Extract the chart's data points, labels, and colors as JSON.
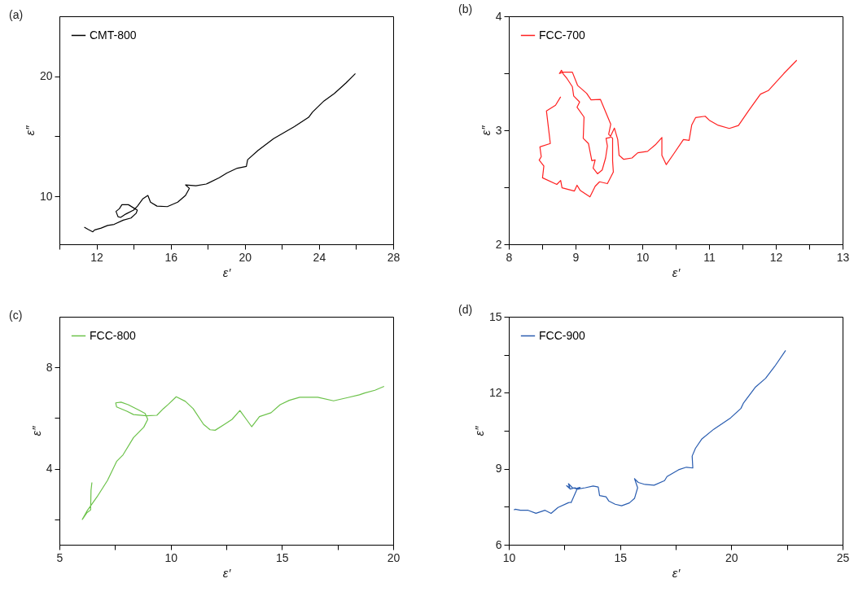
{
  "chart_data": [
    {
      "type": "line",
      "annotations": [
        "(a)"
      ],
      "xlabel": "ε′",
      "ylabel": "ε″",
      "legend": "top left",
      "marker": "none",
      "line_style": "solid",
      "grid": false,
      "xlim": [
        10,
        28
      ],
      "ylim": [
        6,
        25
      ],
      "xticks": [
        {
          "value": 10,
          "label": null
        },
        12,
        {
          "value": 14,
          "label": null
        },
        16,
        {
          "value": 18,
          "label": null
        },
        20,
        {
          "value": 22,
          "label": null
        },
        24,
        {
          "value": 26,
          "label": null
        },
        28
      ],
      "yticks": [
        10,
        {
          "value": 15,
          "label": null
        },
        20
      ],
      "series": [
        {
          "name": "CMT-800",
          "color": "#000000",
          "x": [
            11.34,
            11.55,
            11.8,
            11.9,
            12.25,
            12.6,
            12.95,
            13.44,
            13.86,
            14.14,
            14.2,
            14.07,
            13.72,
            13.37,
            13.23,
            13.05,
            13.16,
            13.3,
            13.58,
            14.0,
            14.21,
            14.49,
            14.77,
            14.91,
            15.26,
            15.82,
            16.38,
            16.8,
            17.01,
            16.8,
            17.36,
            17.92,
            18.62,
            19.03,
            19.59,
            20.08,
            20.15,
            20.71,
            21.55,
            22.67,
            23.44,
            23.65,
            24.27,
            24.83,
            25.46,
            25.96
          ],
          "values": [
            7.42,
            7.24,
            7.04,
            7.2,
            7.35,
            7.57,
            7.66,
            8.01,
            8.19,
            8.59,
            8.85,
            8.96,
            9.3,
            9.3,
            8.96,
            8.74,
            8.3,
            8.24,
            8.52,
            8.85,
            9.18,
            9.78,
            10.07,
            9.51,
            9.18,
            9.14,
            9.51,
            10.07,
            10.66,
            10.95,
            10.88,
            11.02,
            11.55,
            11.94,
            12.34,
            12.49,
            13.05,
            13.82,
            14.81,
            15.81,
            16.58,
            17.02,
            17.95,
            18.57,
            19.45,
            20.22
          ]
        }
      ]
    },
    {
      "type": "line",
      "annotations": [
        "(b)"
      ],
      "xlabel": "ε′",
      "ylabel": "ε″",
      "legend": "top left",
      "marker": "none",
      "line_style": "solid",
      "grid": false,
      "xlim": [
        8,
        13
      ],
      "ylim": [
        2,
        4
      ],
      "xticks": [
        8,
        {
          "value": 8.5,
          "label": null
        },
        9,
        {
          "value": 9.5,
          "label": null
        },
        10,
        {
          "value": 10.5,
          "label": null
        },
        11,
        {
          "value": 11.5,
          "label": null
        },
        12,
        {
          "value": 12.5,
          "label": null
        },
        13
      ],
      "yticks": [
        2,
        {
          "value": 2.5,
          "label": null
        },
        3,
        {
          "value": 3.5,
          "label": null
        },
        4
      ],
      "series": [
        {
          "name": "FCC-700",
          "color": "#ff2020",
          "x": [
            8.777,
            8.7,
            8.564,
            8.622,
            8.466,
            8.486,
            8.455,
            8.525,
            8.505,
            8.719,
            8.777,
            8.797,
            8.983,
            9.022,
            9.068,
            9.216,
            9.294,
            9.36,
            9.477,
            9.566,
            9.555,
            9.555,
            9.496,
            9.527,
            9.372,
            9.232,
            9.166,
            9.03,
            8.952,
            8.816,
            8.758,
            8.789,
            8.816,
            8.874,
            8.952,
            8.972,
            9.061,
            9.022,
            9.127,
            9.115,
            9.193,
            9.244,
            9.294,
            9.263,
            9.329,
            9.399,
            9.45,
            9.477,
            9.457,
            9.516,
            9.582,
            9.632,
            9.652,
            9.722,
            9.846,
            9.932,
            10.079,
            10.196,
            10.293,
            10.293,
            10.359,
            10.468,
            10.616,
            10.701,
            10.74,
            10.798,
            10.942,
            11.004,
            11.128,
            11.303,
            11.44,
            11.595,
            11.77,
            11.887,
            12.12,
            12.314
          ],
          "values": [
            3.294,
            3.22,
            3.169,
            2.884,
            2.854,
            2.768,
            2.738,
            2.687,
            2.583,
            2.525,
            2.56,
            2.495,
            2.467,
            2.518,
            2.474,
            2.416,
            2.509,
            2.548,
            2.532,
            2.634,
            2.733,
            2.93,
            2.965,
            3.053,
            3.271,
            3.267,
            3.324,
            3.394,
            3.51,
            3.51,
            3.498,
            3.526,
            3.494,
            3.452,
            3.382,
            3.301,
            3.248,
            3.202,
            3.116,
            2.93,
            2.884,
            2.733,
            2.74,
            2.669,
            2.618,
            2.652,
            2.757,
            2.861,
            2.93,
            2.937,
            3.019,
            2.919,
            2.78,
            2.745,
            2.757,
            2.803,
            2.815,
            2.873,
            2.937,
            2.78,
            2.699,
            2.791,
            2.919,
            2.912,
            3.046,
            3.111,
            3.123,
            3.088,
            3.046,
            3.016,
            3.042,
            3.174,
            3.317,
            3.348,
            3.498,
            3.614
          ]
        }
      ]
    },
    {
      "type": "line",
      "annotations": [
        "(c)"
      ],
      "xlabel": "ε′",
      "ylabel": "ε″",
      "legend": "top left",
      "marker": "none",
      "line_style": "solid",
      "grid": false,
      "xlim": [
        5,
        20
      ],
      "ylim": [
        1,
        10
      ],
      "xticks": [
        5,
        {
          "value": 7.5,
          "label": null
        },
        10,
        {
          "value": 12.5,
          "label": null
        },
        15,
        {
          "value": 17.5,
          "label": null
        },
        20
      ],
      "yticks": [
        {
          "value": 2,
          "label": null
        },
        4,
        {
          "value": 6,
          "label": null
        },
        8
      ],
      "series": [
        {
          "name": "FCC-800",
          "color": "#6cc24a",
          "x": [
            6.46,
            6.42,
            6.4,
            6.23,
            6.03,
            6.23,
            6.69,
            7.16,
            7.57,
            7.86,
            8.33,
            8.79,
            8.97,
            8.85,
            8.56,
            8.09,
            7.77,
            7.53,
            7.57,
            8.03,
            8.33,
            8.91,
            9.38,
            9.67,
            9.9,
            10.25,
            10.66,
            11.01,
            11.48,
            11.77,
            12.0,
            12.41,
            12.76,
            13.11,
            13.4,
            13.64,
            13.99,
            14.51,
            14.92,
            15.33,
            15.8,
            16.61,
            17.32,
            17.96,
            18.48,
            18.72,
            19.18,
            19.59
          ],
          "values": [
            3.46,
            3.15,
            2.37,
            2.26,
            2.0,
            2.32,
            2.89,
            3.54,
            4.29,
            4.55,
            5.23,
            5.64,
            5.95,
            6.18,
            6.32,
            6.53,
            6.63,
            6.6,
            6.44,
            6.27,
            6.14,
            6.09,
            6.11,
            6.37,
            6.55,
            6.84,
            6.66,
            6.37,
            5.75,
            5.54,
            5.52,
            5.75,
            5.95,
            6.3,
            5.95,
            5.66,
            6.06,
            6.21,
            6.53,
            6.7,
            6.82,
            6.82,
            6.68,
            6.81,
            6.92,
            6.99,
            7.1,
            7.25
          ]
        }
      ]
    },
    {
      "type": "line",
      "annotations": [
        "(d)"
      ],
      "xlabel": "ε′",
      "ylabel": "ε″",
      "legend": "top left",
      "marker": "none",
      "line_style": "solid",
      "grid": false,
      "xlim": [
        10,
        25
      ],
      "ylim": [
        6,
        15
      ],
      "xticks": [
        10,
        {
          "value": 12.5,
          "label": null
        },
        15,
        {
          "value": 17.5,
          "label": null
        },
        20,
        {
          "value": 22.5,
          "label": null
        },
        25
      ],
      "yticks": [
        6,
        {
          "value": 7.5,
          "label": null
        },
        9,
        {
          "value": 10.5,
          "label": null
        },
        12,
        {
          "value": 13.5,
          "label": null
        },
        15
      ],
      "series": [
        {
          "name": "FCC-900",
          "color": "#2a5db0",
          "x": [
            10.23,
            10.29,
            10.52,
            10.87,
            11.22,
            11.63,
            11.9,
            12.21,
            12.68,
            12.8,
            12.8,
            13.09,
            13.2,
            13.15,
            12.97,
            12.76,
            12.6,
            12.74,
            12.68,
            12.86,
            13.09,
            13.44,
            13.79,
            14.02,
            14.08,
            14.37,
            14.49,
            14.78,
            15.07,
            15.42,
            15.65,
            15.79,
            15.65,
            15.82,
            16.12,
            16.53,
            17.0,
            17.11,
            17.63,
            17.98,
            18.27,
            18.24,
            18.39,
            18.68,
            19.21,
            19.97,
            20.43,
            20.55,
            21.07,
            21.54,
            21.95,
            22.44
          ],
          "values": [
            7.38,
            7.4,
            7.36,
            7.36,
            7.24,
            7.36,
            7.24,
            7.47,
            7.66,
            7.68,
            7.66,
            8.24,
            8.26,
            8.2,
            8.25,
            8.2,
            8.33,
            8.25,
            8.41,
            8.25,
            8.2,
            8.25,
            8.32,
            8.28,
            7.94,
            7.89,
            7.73,
            7.6,
            7.54,
            7.65,
            7.83,
            8.25,
            8.61,
            8.46,
            8.38,
            8.35,
            8.53,
            8.69,
            8.96,
            9.06,
            9.03,
            9.5,
            9.81,
            10.18,
            10.56,
            11.01,
            11.38,
            11.6,
            12.21,
            12.57,
            13.04,
            13.67
          ]
        }
      ]
    }
  ]
}
